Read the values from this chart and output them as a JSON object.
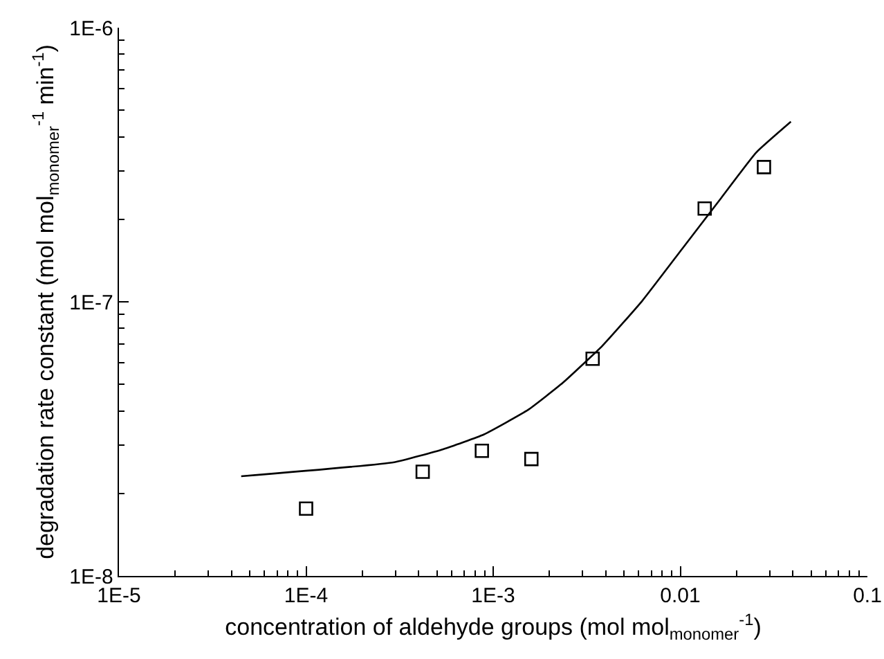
{
  "chart_data": {
    "type": "scatter",
    "xlabel": "concentration of aldehyde groups (mol mol$_{monomer}$$^{-1}$)",
    "ylabel": "degradation rate constant (mol mol$_{monomer}$$^{-1}$ min$^{-1}$)",
    "log": "xy",
    "grid": false,
    "marker": "square",
    "xlim": [
      1e-05,
      0.1
    ],
    "ylim": [
      1e-08,
      1e-06
    ],
    "xticks": [
      {
        "value": 1e-05,
        "label": "1E-5"
      },
      {
        "value": 0.0001,
        "label": "1E-4"
      },
      {
        "value": 0.001,
        "label": "1E-3"
      },
      0.01,
      0.1
    ],
    "yticks": [
      {
        "value": 1e-08,
        "label": "1E-8"
      },
      {
        "value": 1e-07,
        "label": "1E-7"
      },
      {
        "value": 1e-06,
        "label": "1E-6"
      }
    ],
    "series": [
      {
        "color": "#000000",
        "x": [
          0.0001,
          0.00042,
          0.00087,
          0.0016,
          0.0034,
          0.0135,
          0.028
        ],
        "values": [
          1.76e-08,
          2.4e-08,
          2.86e-08,
          2.67e-08,
          6.2e-08,
          2.19e-07,
          3.1e-07
        ]
      },
      {
        "type": "line",
        "color": "#000000",
        "marker": "none",
        "line_style": "solid",
        "x": [
          4.5e-05,
          0.000296,
          0.00054,
          0.00089,
          0.00154,
          0.00236,
          0.00384,
          0.00625,
          0.0102,
          0.0166,
          0.0254,
          0.039
        ],
        "values": [
          2.31e-08,
          2.6e-08,
          2.9e-08,
          3.28e-08,
          4.04e-08,
          5.07e-08,
          6.92e-08,
          1.007e-07,
          1.556e-07,
          2.4e-07,
          3.5e-07,
          4.54e-07
        ]
      }
    ]
  }
}
